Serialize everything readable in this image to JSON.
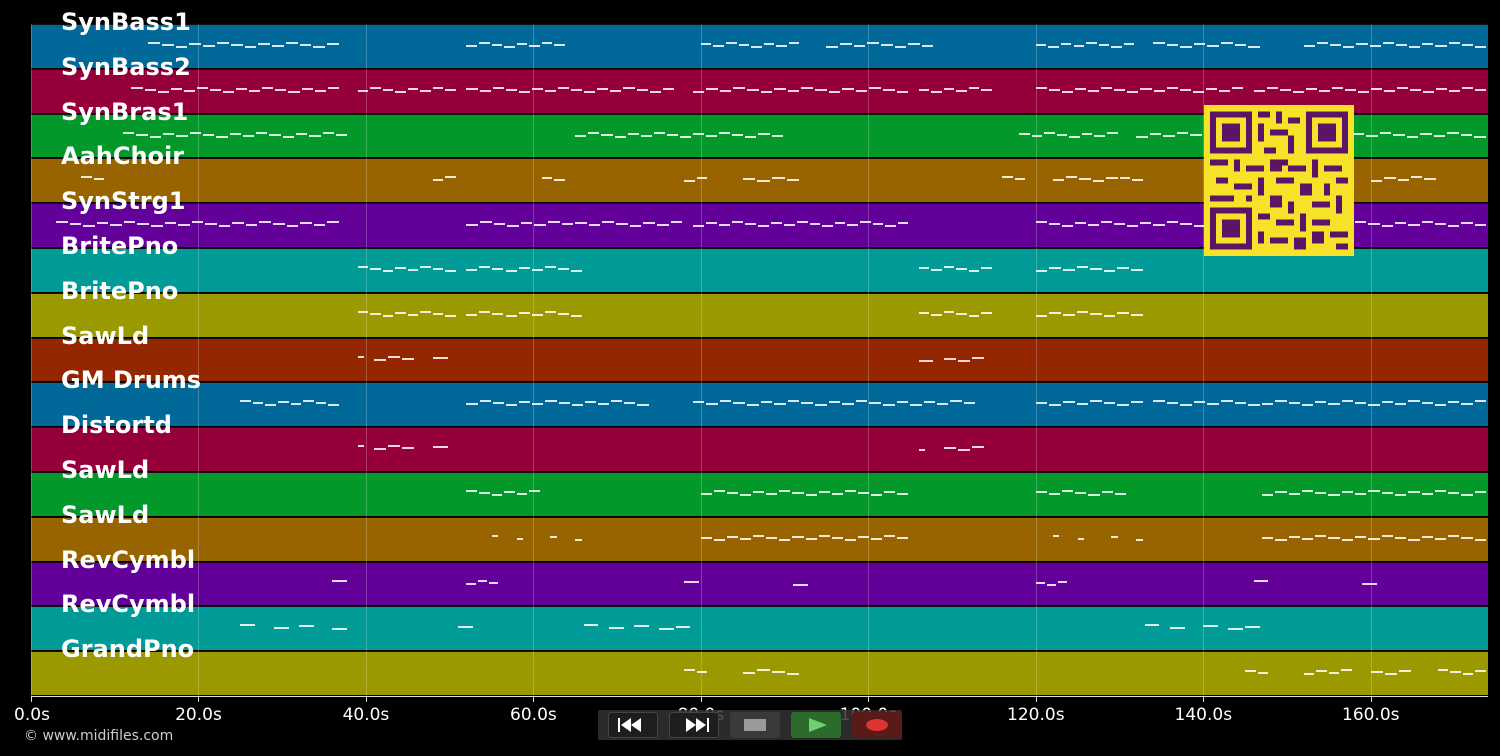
{
  "app": {
    "copyright": "© www.midifiles.com",
    "colors": {
      "blue": "#01689a",
      "crimson": "#96003a",
      "green": "#02982a",
      "ochre": "#986400",
      "purple": "#620099",
      "teal": "#009a97",
      "olive": "#9a9900",
      "rust": "#952700",
      "qr_yellow": "#f7e22a",
      "qr_dark": "#5c1566"
    }
  },
  "tracks": [
    {
      "name": "SynBass1",
      "color": "#01689a"
    },
    {
      "name": "SynBass2",
      "color": "#96003a"
    },
    {
      "name": "SynBras1",
      "color": "#02982a"
    },
    {
      "name": "AahChoir",
      "color": "#986400"
    },
    {
      "name": "SynStrg1",
      "color": "#620099"
    },
    {
      "name": "BritePno",
      "color": "#009a97"
    },
    {
      "name": "BritePno",
      "color": "#9a9900"
    },
    {
      "name": "SawLd",
      "color": "#952700"
    },
    {
      "name": "GM Drums",
      "color": "#01689a"
    },
    {
      "name": "Distortd",
      "color": "#96003a"
    },
    {
      "name": "SawLd",
      "color": "#02982a"
    },
    {
      "name": "SawLd",
      "color": "#986400"
    },
    {
      "name": "RevCymbl",
      "color": "#620099"
    },
    {
      "name": "RevCymbl",
      "color": "#009a97"
    },
    {
      "name": "GrandPno",
      "color": "#9a9900"
    }
  ],
  "timeline": {
    "ticks": [
      "0.0s",
      "20.0s",
      "40.0s",
      "60.0s",
      "80.0s",
      "100.0s",
      "120.0s",
      "140.0s",
      "160.0s"
    ],
    "tick_values": [
      0,
      20,
      40,
      60,
      80,
      100,
      120,
      140,
      160
    ],
    "max_seconds": 174
  },
  "transport": {
    "rewind_icon": "rewind-icon",
    "forward_icon": "fast-forward-icon",
    "stop_icon": "stop-icon",
    "play_icon": "play-icon",
    "record_icon": "record-icon"
  },
  "notes": [
    {
      "track": 0,
      "segments": [
        [
          14,
          37
        ],
        [
          52,
          64
        ],
        [
          80,
          92
        ],
        [
          95,
          108
        ],
        [
          120,
          132
        ],
        [
          134,
          147
        ],
        [
          152,
          174
        ]
      ]
    },
    {
      "track": 1,
      "segments": [
        [
          12,
          37
        ],
        [
          39,
          51
        ],
        [
          52,
          77
        ],
        [
          79,
          105
        ],
        [
          106,
          115
        ],
        [
          120,
          145
        ],
        [
          146,
          174
        ]
      ]
    },
    {
      "track": 2,
      "segments": [
        [
          11,
          38
        ],
        [
          65,
          90
        ],
        [
          118,
          130
        ],
        [
          132,
          174
        ]
      ]
    },
    {
      "track": 3,
      "segments": [
        [
          6,
          9
        ],
        [
          48,
          51
        ],
        [
          61,
          64
        ],
        [
          78,
          81
        ],
        [
          85,
          92
        ],
        [
          116,
          119
        ],
        [
          122,
          130
        ],
        [
          130,
          133
        ],
        [
          160,
          168
        ]
      ]
    },
    {
      "track": 4,
      "segments": [
        [
          3,
          37
        ],
        [
          52,
          65
        ],
        [
          65,
          78
        ],
        [
          79,
          93
        ],
        [
          93,
          105
        ],
        [
          120,
          134
        ],
        [
          134,
          147
        ],
        [
          147,
          174
        ]
      ]
    },
    {
      "track": 5,
      "segments": [
        [
          39,
          51
        ],
        [
          52,
          66
        ],
        [
          106,
          115
        ],
        [
          120,
          133
        ]
      ]
    },
    {
      "track": 6,
      "segments": [
        [
          39,
          51
        ],
        [
          52,
          66
        ],
        [
          106,
          115
        ],
        [
          120,
          133
        ]
      ]
    },
    {
      "track": 7,
      "segments": [
        [
          39,
          40
        ],
        [
          41,
          46
        ],
        [
          48,
          50
        ],
        [
          106,
          108
        ],
        [
          109,
          114
        ]
      ]
    },
    {
      "track": 8,
      "segments": [
        [
          25,
          37
        ],
        [
          52,
          74
        ],
        [
          79,
          105
        ],
        [
          105,
          113
        ],
        [
          120,
          133
        ],
        [
          134,
          147
        ],
        [
          147,
          174
        ]
      ]
    },
    {
      "track": 9,
      "segments": [
        [
          39,
          40
        ],
        [
          41,
          46
        ],
        [
          48,
          50
        ],
        [
          106,
          107
        ],
        [
          109,
          114
        ]
      ]
    },
    {
      "track": 10,
      "segments": [
        [
          52,
          61
        ],
        [
          80,
          105
        ],
        [
          120,
          131
        ],
        [
          147,
          174
        ]
      ]
    },
    {
      "track": 11,
      "segments": [
        [
          55,
          56
        ],
        [
          58,
          59
        ],
        [
          62,
          63
        ],
        [
          65,
          66
        ],
        [
          80,
          105
        ],
        [
          122,
          123
        ],
        [
          125,
          126
        ],
        [
          129,
          130
        ],
        [
          132,
          133
        ],
        [
          147,
          174
        ]
      ]
    },
    {
      "track": 12,
      "segments": [
        [
          36,
          38
        ],
        [
          52,
          56
        ],
        [
          78,
          80
        ],
        [
          91,
          93
        ],
        [
          120,
          124
        ],
        [
          146,
          148
        ],
        [
          159,
          161
        ]
      ]
    },
    {
      "track": 13,
      "segments": [
        [
          25,
          27
        ],
        [
          29,
          31
        ],
        [
          32,
          34
        ],
        [
          36,
          38
        ],
        [
          51,
          53
        ],
        [
          66,
          68
        ],
        [
          69,
          71
        ],
        [
          72,
          74
        ],
        [
          75,
          77
        ],
        [
          77,
          79
        ],
        [
          133,
          135
        ],
        [
          136,
          138
        ],
        [
          140,
          142
        ],
        [
          143,
          145
        ],
        [
          145,
          147
        ]
      ]
    },
    {
      "track": 14,
      "segments": [
        [
          78,
          81
        ],
        [
          85,
          92
        ],
        [
          145,
          148
        ],
        [
          152,
          158
        ],
        [
          160,
          165
        ],
        [
          168,
          174
        ]
      ]
    }
  ]
}
